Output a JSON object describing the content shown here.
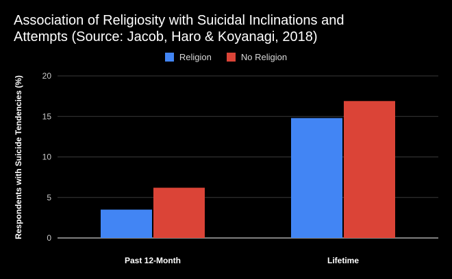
{
  "chart_data": {
    "type": "bar",
    "title_lines": [
      "Association of Religiosity with Suicidal Inclinations and",
      "Attempts (Source: Jacob, Haro & Koyanagi, 2018)"
    ],
    "categories": [
      "Past 12-Month",
      "Lifetime"
    ],
    "series": [
      {
        "name": "Religion",
        "color": "#4285f4",
        "values": [
          3.5,
          14.8
        ]
      },
      {
        "name": "No Religion",
        "color": "#db4437",
        "values": [
          6.2,
          16.9
        ]
      }
    ],
    "xlabel": "",
    "ylabel": "Respondents with Suicide Tendencies (%)",
    "ylim": [
      0,
      20
    ],
    "yticks": [
      0,
      5,
      10,
      15,
      20
    ],
    "grid": true,
    "legend_position": "top"
  }
}
